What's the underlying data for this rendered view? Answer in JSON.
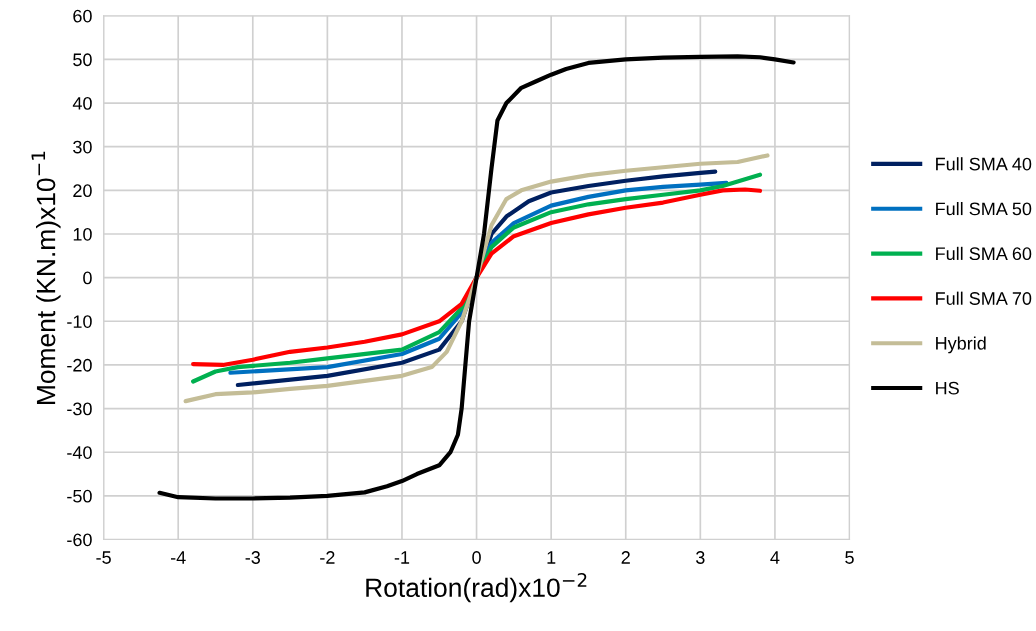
{
  "chart_data": {
    "type": "line",
    "xlabel": "Rotation(rad)x10$^{−2}$",
    "ylabel": "Moment (KN.m)x10$^{−1}$",
    "xlim": [
      -5,
      5
    ],
    "xticks": [
      -5,
      -4,
      -3,
      -2,
      -1,
      0,
      1,
      2,
      3,
      4,
      5
    ],
    "ylim": [
      -60,
      60
    ],
    "yticks": [
      -60,
      -50,
      -40,
      -30,
      -20,
      -10,
      0,
      10,
      20,
      30,
      40,
      50,
      60
    ],
    "grid": true,
    "legend": "right",
    "marker": "none",
    "line_style": "solid",
    "series": [
      {
        "name": "Full SMA 40",
        "color": "#002060",
        "x": [
          -3.2,
          -2,
          -1,
          -0.5,
          -0.2,
          0,
          0.2,
          0.4,
          0.7,
          1,
          1.5,
          2,
          2.5,
          3,
          3.2
        ],
        "values": [
          -24.6,
          -22.5,
          -19.5,
          -16.5,
          -10,
          0,
          10,
          14,
          17.5,
          19.5,
          21,
          22.2,
          23.2,
          24,
          24.3
        ]
      },
      {
        "name": "Full SMA 50",
        "color": "#0070c0",
        "x": [
          -3.3,
          -2,
          -1,
          -0.5,
          -0.2,
          0,
          0.2,
          0.5,
          1,
          1.5,
          2,
          2.5,
          3,
          3.35
        ],
        "values": [
          -21.8,
          -20.5,
          -17.5,
          -14,
          -8,
          0,
          8,
          12.5,
          16.5,
          18.5,
          20,
          20.8,
          21.3,
          21.7
        ]
      },
      {
        "name": "Full SMA 60",
        "color": "#00b050",
        "x": [
          -3.8,
          -3.5,
          -3.2,
          -2.5,
          -2,
          -1,
          -0.5,
          -0.2,
          0,
          0.2,
          0.5,
          1,
          1.5,
          2,
          2.5,
          3,
          3.3,
          3.5,
          3.8
        ],
        "values": [
          -23.8,
          -21.5,
          -20.5,
          -19.5,
          -18.5,
          -16.5,
          -12.5,
          -7,
          0,
          7,
          11.5,
          15,
          16.8,
          18,
          19,
          20,
          21,
          22,
          23.6
        ]
      },
      {
        "name": "Full SMA 70",
        "color": "#ff0000",
        "x": [
          -3.8,
          -3.4,
          -3,
          -2.5,
          -2,
          -1.5,
          -1,
          -0.5,
          -0.2,
          0,
          0.2,
          0.5,
          1,
          1.5,
          2,
          2.5,
          3,
          3.3,
          3.6,
          3.8
        ],
        "values": [
          -19.8,
          -20,
          -18.8,
          -17,
          -16,
          -14.7,
          -13,
          -10,
          -6,
          0,
          5.5,
          9.5,
          12.5,
          14.5,
          16,
          17.2,
          19,
          20,
          20.2,
          19.9
        ]
      },
      {
        "name": "Hybrid",
        "color": "#c4bd97",
        "x": [
          -3.9,
          -3.5,
          -3,
          -2.5,
          -2,
          -1,
          -0.6,
          -0.4,
          -0.2,
          0,
          0.2,
          0.4,
          0.6,
          1,
          1.5,
          2,
          2.5,
          3,
          3.5,
          3.9
        ],
        "values": [
          -28.3,
          -26.7,
          -26.3,
          -25.5,
          -24.8,
          -22.5,
          -20.5,
          -17,
          -10,
          0,
          12,
          18,
          20,
          22,
          23.5,
          24.5,
          25.3,
          26.1,
          26.5,
          28
        ]
      },
      {
        "name": "HS",
        "color": "#000000",
        "x": [
          -4.25,
          -4,
          -3.5,
          -3,
          -2.5,
          -2,
          -1.5,
          -1.2,
          -1,
          -0.8,
          -0.5,
          -0.35,
          -0.25,
          -0.2,
          -0.15,
          -0.1,
          0,
          0.1,
          0.2,
          0.28,
          0.4,
          0.6,
          0.8,
          1,
          1.2,
          1.5,
          2,
          2.5,
          3,
          3.5,
          3.8,
          4,
          4.25
        ],
        "values": [
          -49.3,
          -50.3,
          -50.6,
          -50.6,
          -50.4,
          -50,
          -49.2,
          -47.8,
          -46.6,
          -45,
          -43,
          -40,
          -36,
          -30,
          -20,
          -10,
          0,
          10,
          25,
          36,
          40,
          43.5,
          45,
          46.5,
          47.8,
          49.2,
          50,
          50.4,
          50.6,
          50.7,
          50.5,
          50,
          49.3
        ]
      }
    ]
  }
}
